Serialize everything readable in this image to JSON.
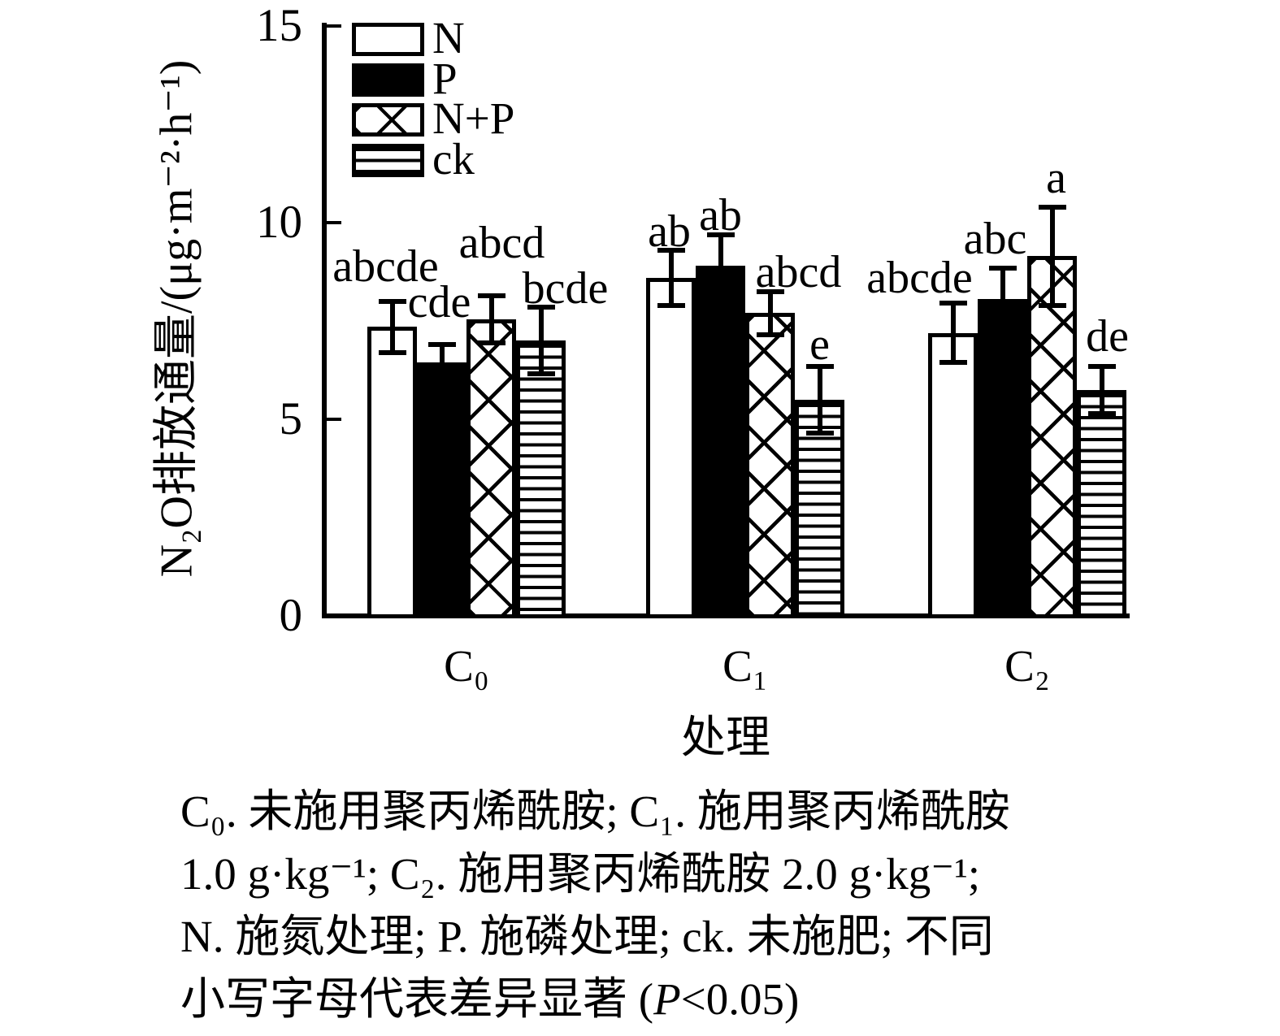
{
  "figure": {
    "y_axis_label": "N₂O排放通量/(μg·m⁻²·h⁻¹)",
    "x_axis_label": "处理",
    "caption": {
      "line1": "C₀. 未施用聚丙烯酰胺; C₁. 施用聚丙烯酰胺",
      "line2": "1.0 g·kg⁻¹; C₂. 施用聚丙烯酰胺 2.0 g·kg⁻¹;",
      "line3": "N. 施氮处理; P. 施磷处理; ck. 未施肥; 不同",
      "line4_pre": "小写字母代表差异显著 (",
      "line4_italic": "P",
      "line4_post": "<0.05)"
    }
  },
  "chart_data": {
    "type": "bar",
    "title": "",
    "xlabel": "处理",
    "ylabel": "N₂O排放通量/(μg·m⁻²·h⁻¹)",
    "ylim": [
      0,
      15
    ],
    "yticks": [
      0,
      5,
      10,
      15
    ],
    "categories": [
      "C₀",
      "C₁",
      "C₂"
    ],
    "grid": false,
    "legend_position": "top-left-inside",
    "error_bars": true,
    "series": [
      {
        "name": "N",
        "fill_pattern": "white",
        "values": [
          7.35,
          8.6,
          7.2
        ],
        "errors": [
          0.65,
          0.7,
          0.75
        ],
        "sig_letters": [
          "abcde",
          "ab",
          "abcde"
        ]
      },
      {
        "name": "P",
        "fill_pattern": "solid-black",
        "values": [
          6.45,
          8.9,
          8.05
        ],
        "errors": [
          0.45,
          0.8,
          0.8
        ],
        "sig_letters": [
          "cde",
          "ab",
          "abc"
        ]
      },
      {
        "name": "N+P",
        "fill_pattern": "crosshatch",
        "values": [
          7.55,
          7.7,
          9.15
        ],
        "errors": [
          0.6,
          0.55,
          1.25
        ],
        "sig_letters": [
          "abcd",
          "abcd",
          "a"
        ]
      },
      {
        "name": "ck",
        "fill_pattern": "horizontal-lines",
        "values": [
          7.0,
          5.5,
          5.75
        ],
        "errors": [
          0.85,
          0.85,
          0.6
        ],
        "sig_letters": [
          "bcde",
          "e",
          "de"
        ]
      }
    ],
    "layout_hints": {
      "letter_offsets": [
        [
          [
            -8,
            27
          ],
          [
            -2,
            7
          ],
          [
            -41,
            15
          ]
        ],
        [
          [
            -3,
            36
          ],
          [
            0,
            8
          ],
          [
            -9,
            20
          ]
        ],
        [
          [
            13,
            49
          ],
          [
            35,
            8
          ],
          [
            5,
            20
          ]
        ],
        [
          [
            30,
            7
          ],
          [
            0,
            11
          ],
          [
            7,
            21
          ]
        ]
      ]
    },
    "colors": {
      "ink": "#000000",
      "paper": "#ffffff"
    }
  }
}
